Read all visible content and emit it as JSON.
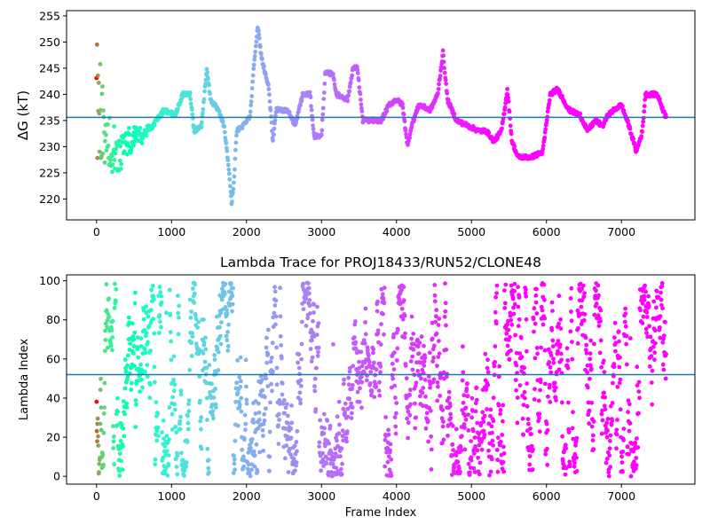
{
  "chart_data": [
    {
      "type": "scatter",
      "title": "",
      "xlabel": "",
      "ylabel": "ΔG (kT)",
      "xlim": [
        -400,
        7980
      ],
      "ylim": [
        216,
        256
      ],
      "xticks": [
        0,
        1000,
        2000,
        3000,
        4000,
        5000,
        6000,
        7000
      ],
      "yticks": [
        220,
        225,
        230,
        235,
        240,
        245,
        250,
        255
      ],
      "hline": 235.6,
      "hline_color": "#1f77b4",
      "colormap": "rainbow (reversed: early frames red, late frames violet)",
      "grid": false,
      "trace_keypoints": [
        [
          0,
          236
        ],
        [
          150,
          231
        ],
        [
          300,
          229
        ],
        [
          450,
          231
        ],
        [
          600,
          232
        ],
        [
          750,
          234
        ],
        [
          900,
          237
        ],
        [
          1050,
          236
        ],
        [
          1150,
          240
        ],
        [
          1250,
          240
        ],
        [
          1300,
          233
        ],
        [
          1400,
          234
        ],
        [
          1470,
          245
        ],
        [
          1520,
          239
        ],
        [
          1620,
          237
        ],
        [
          1700,
          234
        ],
        [
          1770,
          225
        ],
        [
          1800,
          219
        ],
        [
          1830,
          223
        ],
        [
          1870,
          233
        ],
        [
          1950,
          234
        ],
        [
          2050,
          236
        ],
        [
          2100,
          246
        ],
        [
          2150,
          253
        ],
        [
          2200,
          247
        ],
        [
          2250,
          244
        ],
        [
          2300,
          241
        ],
        [
          2350,
          231
        ],
        [
          2400,
          237
        ],
        [
          2550,
          237
        ],
        [
          2650,
          234
        ],
        [
          2750,
          240
        ],
        [
          2850,
          240
        ],
        [
          2900,
          232
        ],
        [
          3000,
          232
        ],
        [
          3050,
          244
        ],
        [
          3150,
          244
        ],
        [
          3200,
          240
        ],
        [
          3350,
          239
        ],
        [
          3420,
          245
        ],
        [
          3480,
          245
        ],
        [
          3550,
          235
        ],
        [
          3700,
          235
        ],
        [
          3800,
          235
        ],
        [
          3900,
          238
        ],
        [
          4000,
          239
        ],
        [
          4080,
          238
        ],
        [
          4150,
          230
        ],
        [
          4200,
          234
        ],
        [
          4300,
          238
        ],
        [
          4450,
          237
        ],
        [
          4550,
          240
        ],
        [
          4620,
          248
        ],
        [
          4680,
          239
        ],
        [
          4800,
          235
        ],
        [
          4950,
          234
        ],
        [
          5100,
          233
        ],
        [
          5200,
          233
        ],
        [
          5300,
          231
        ],
        [
          5400,
          233
        ],
        [
          5480,
          241
        ],
        [
          5540,
          231
        ],
        [
          5620,
          228
        ],
        [
          5800,
          228
        ],
        [
          5950,
          229
        ],
        [
          6050,
          240
        ],
        [
          6150,
          241
        ],
        [
          6300,
          237
        ],
        [
          6450,
          236
        ],
        [
          6550,
          233
        ],
        [
          6650,
          235
        ],
        [
          6750,
          234
        ],
        [
          6820,
          236
        ],
        [
          6900,
          237
        ],
        [
          7000,
          238
        ],
        [
          7100,
          234
        ],
        [
          7200,
          229
        ],
        [
          7280,
          233
        ],
        [
          7320,
          240
        ],
        [
          7400,
          240
        ],
        [
          7480,
          240
        ],
        [
          7580,
          236
        ]
      ]
    },
    {
      "type": "scatter",
      "title": "Lambda Trace for PROJ18433/RUN52/CLONE48",
      "xlabel": "Frame Index",
      "ylabel": "Lambda Index",
      "xlim": [
        -400,
        7980
      ],
      "ylim": [
        -4,
        103
      ],
      "xticks": [
        0,
        1000,
        2000,
        3000,
        4000,
        5000,
        6000,
        7000
      ],
      "yticks": [
        0,
        20,
        40,
        60,
        80,
        100
      ],
      "hline": 52,
      "hline_color": "#1f77b4",
      "colormap": "rainbow (reversed: early frames red, late frames violet)",
      "grid": false,
      "n_frames": 7600,
      "lambda_range": [
        0,
        99
      ]
    }
  ]
}
